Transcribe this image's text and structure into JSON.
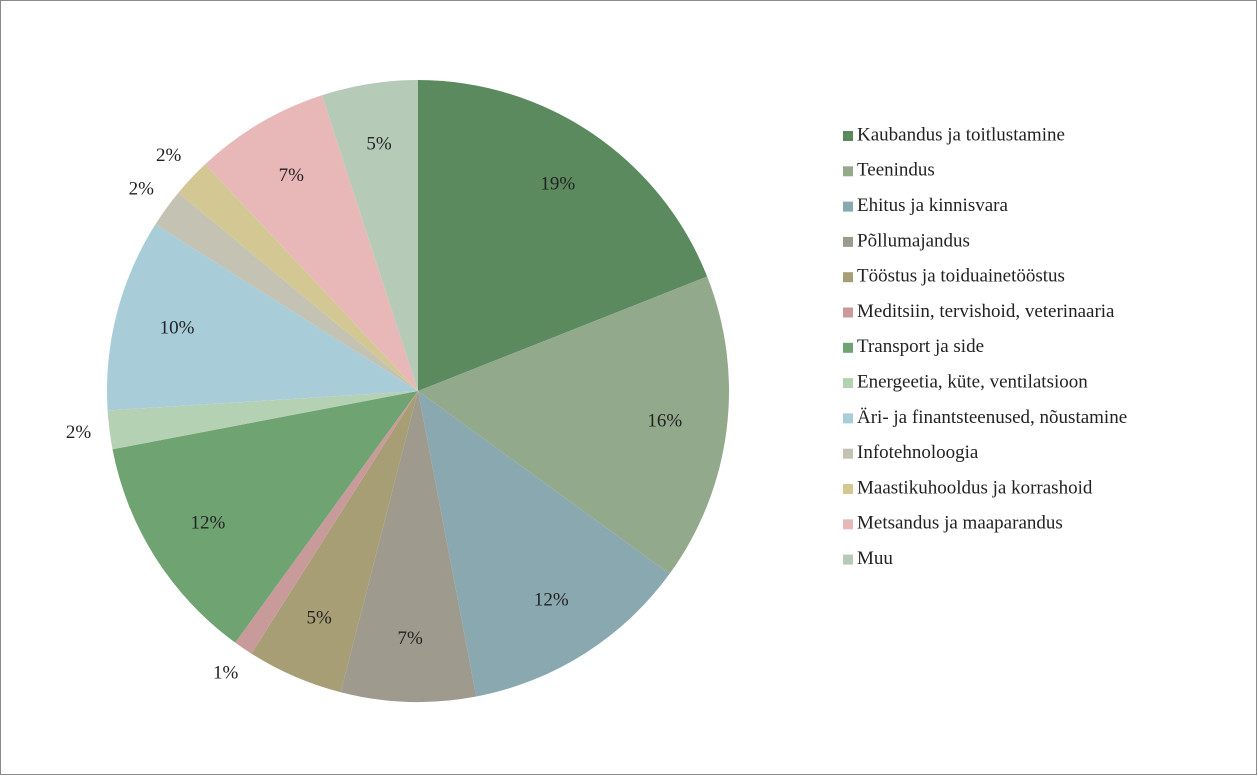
{
  "chart_data": {
    "type": "pie",
    "categories": [
      "Kaubandus ja toitlustamine",
      "Teenindus",
      "Ehitus ja kinnisvara",
      "Põllumajandus",
      "Tööstus ja toiduainetööstus",
      "Meditsiin, tervishoid, veterinaaria",
      "Transport ja side",
      "Energeetia, küte, ventilatsioon",
      "Äri- ja finantsteenused, nõustamine",
      "Infotehnoloogia",
      "Maastikuhooldus ja korrashoid",
      "Metsandus ja maaparandus",
      "Muu"
    ],
    "values": [
      19,
      16,
      12,
      7,
      5,
      1,
      12,
      2,
      10,
      2,
      2,
      7,
      5
    ],
    "value_labels": [
      "19%",
      "16%",
      "12%",
      "7%",
      "5%",
      "1%",
      "12%",
      "2%",
      "10%",
      "2%",
      "2%",
      "7%",
      "5%"
    ],
    "colors": [
      "#5b8a5e",
      "#93a98c",
      "#8aa8b0",
      "#9e9a8e",
      "#a89e76",
      "#c99a9a",
      "#6fa472",
      "#b5d1b3",
      "#a8cdd8",
      "#c4c2b3",
      "#d3c894",
      "#e8b8b8",
      "#b5cbb7"
    ],
    "legend": "right"
  }
}
